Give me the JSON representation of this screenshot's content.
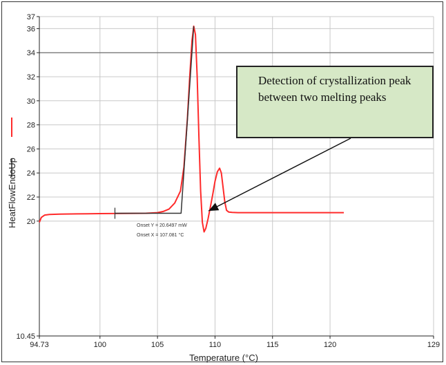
{
  "chart_data": {
    "type": "line",
    "title": "",
    "xlabel": "Temperature (°C)",
    "ylabel": "HeatFlowEndoUp",
    "xlim": [
      94.73,
      129
    ],
    "ylim": [
      10.45,
      37
    ],
    "x_ticks": [
      "94.73",
      "100",
      "105",
      "110",
      "115",
      "120",
      "129"
    ],
    "x_tick_values": [
      94.73,
      100,
      105,
      110,
      115,
      120,
      129
    ],
    "y_ticks": [
      "10.45",
      "20",
      "22",
      "24",
      "26",
      "28",
      "30",
      "32",
      "34",
      "36",
      "37"
    ],
    "y_tick_values": [
      10.45,
      20,
      22,
      24,
      26,
      28,
      30,
      32,
      34,
      36,
      37
    ],
    "grid": true,
    "series": [
      {
        "color": "#ff2a2a",
        "x": [
          94.73,
          94.9,
          95.2,
          95.6,
          96.5,
          98,
          100,
          102,
          104,
          105,
          105.5,
          106,
          106.5,
          107,
          107.3,
          107.6,
          107.8,
          108,
          108.15,
          108.3,
          108.45,
          108.6,
          108.75,
          108.9,
          109.05,
          109.2,
          109.4,
          109.6,
          109.8,
          110,
          110.2,
          110.4,
          110.55,
          110.7,
          110.85,
          111,
          111.2,
          111.5,
          112,
          115,
          118,
          121.2
        ],
        "y": [
          19.9,
          20.3,
          20.5,
          20.55,
          20.58,
          20.6,
          20.62,
          20.64,
          20.65,
          20.7,
          20.8,
          21,
          21.5,
          22.5,
          24.5,
          28.5,
          32,
          35,
          36.2,
          35.5,
          32,
          27,
          22.5,
          19.9,
          19.1,
          19.4,
          20.2,
          21.2,
          22.2,
          23.3,
          24.1,
          24.4,
          24,
          22.8,
          21.6,
          20.9,
          20.75,
          20.72,
          20.7,
          20.7,
          20.7,
          20.7
        ]
      },
      {
        "color": "#333333",
        "x": [
          101.3,
          107.05,
          108.15
        ],
        "y": [
          20.65,
          20.65,
          36.2
        ]
      }
    ],
    "annotations": {
      "onset_y": "Onset Y = 20.6497 mW",
      "onset_x": "Onset X = 107.081 °C",
      "callout": "Detection of crystallization peak between two melting peaks",
      "arrow_target": {
        "x": 109.2,
        "y": 20.5
      },
      "marker_x": 101.3
    },
    "legend": "left-side colored line segments beside y-axis title"
  }
}
